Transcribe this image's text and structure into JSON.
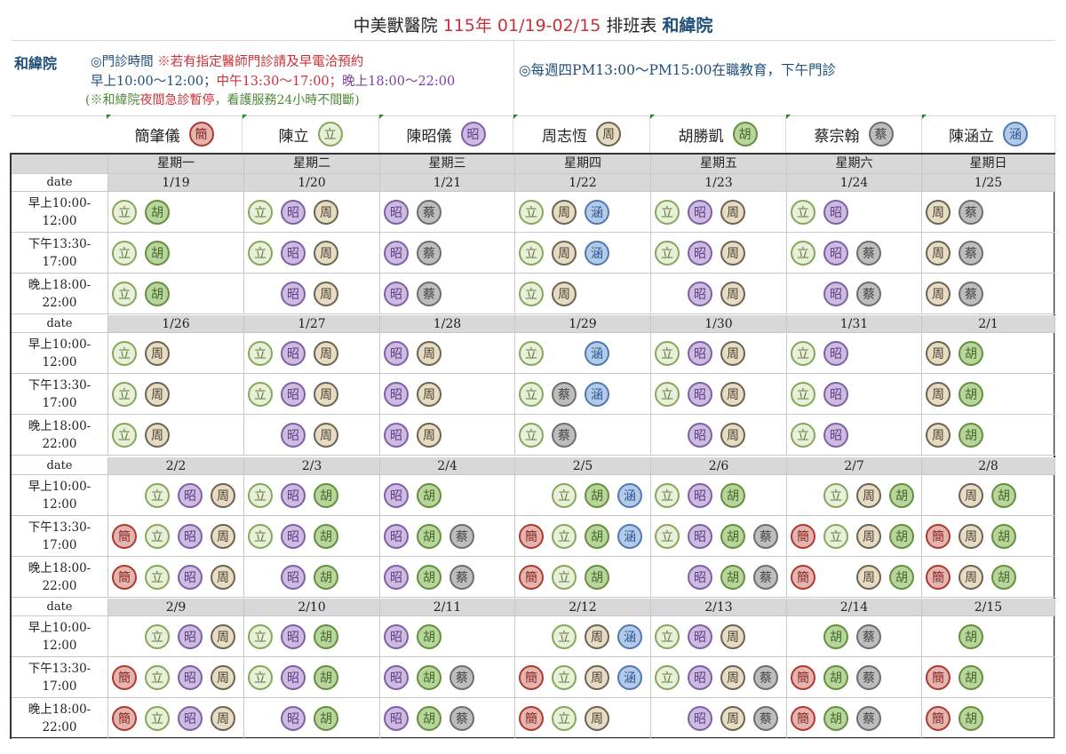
{
  "title": {
    "part1": "中美獸醫院",
    "part2": "115年 01/19-02/15",
    "part3": "排班表",
    "part4": "和緯院"
  },
  "info": {
    "branch": "和緯院",
    "line1_a": "◎門診時間",
    "line1_b": "※若有指定醫師門診請及早電洽預約",
    "line2_a": "早上10:00～12:00；",
    "line2_b": "中午13:30～17:00；",
    "line2_c": "晚上18:00～22:00",
    "line3_a": "(※和緯院",
    "line3_b": "夜間急診暫停",
    "line3_c": "，看護服務24小時不間斷)",
    "right": "◎每週四PM13:00～PM15:00在職教育，下午門診"
  },
  "colors": {
    "簡": {
      "fill": "#e3b4b0",
      "border": "#b0392f",
      "text": "#8b2a22"
    },
    "立": {
      "fill": "#e9efd9",
      "border": "#84a85a",
      "text": "#5a7a3a"
    },
    "昭": {
      "fill": "#cdbbe0",
      "border": "#7f5fa8",
      "text": "#5e3f88"
    },
    "周": {
      "fill": "#e6dcc3",
      "border": "#6e6350",
      "text": "#4e4436"
    },
    "胡": {
      "fill": "#b9d49d",
      "border": "#62913c",
      "text": "#3e6a22"
    },
    "蔡": {
      "fill": "#bdbdbd",
      "border": "#6e6e6e",
      "text": "#444444"
    },
    "涵": {
      "fill": "#b4cbe8",
      "border": "#4f78b4",
      "text": "#2f5898"
    }
  },
  "doctors": [
    {
      "name": "簡肇儀",
      "icon": "簡"
    },
    {
      "name": "陳立",
      "icon": "立"
    },
    {
      "name": "陳昭儀",
      "icon": "昭"
    },
    {
      "name": "周志恆",
      "icon": "周"
    },
    {
      "name": "胡勝凱",
      "icon": "胡"
    },
    {
      "name": "蔡宗翰",
      "icon": "蔡"
    },
    {
      "name": "陳涵立",
      "icon": "涵"
    }
  ],
  "weekdays": [
    "星期一",
    "星期二",
    "星期三",
    "星期四",
    "星期五",
    "星期六",
    "星期日"
  ],
  "date_label": "date",
  "shift_labels": [
    [
      "早上10:00-",
      "12:00"
    ],
    [
      "下午13:30-",
      "17:00"
    ],
    [
      "晚上18:00-",
      "22:00"
    ]
  ],
  "weeks": [
    {
      "dates": [
        "1/19",
        "1/20",
        "1/21",
        "1/22",
        "1/23",
        "1/24",
        "1/25"
      ],
      "shifts": [
        [
          [
            "立",
            "胡"
          ],
          [
            "立",
            "昭",
            "周"
          ],
          [
            "昭",
            "蔡"
          ],
          [
            "立",
            "周",
            "涵"
          ],
          [
            "立",
            "昭",
            "周"
          ],
          [
            "立",
            "昭"
          ],
          [
            "周",
            "蔡"
          ]
        ],
        [
          [
            "立",
            "胡"
          ],
          [
            "立",
            "昭",
            "周"
          ],
          [
            "昭",
            "蔡"
          ],
          [
            "立",
            "周",
            "涵"
          ],
          [
            "立",
            "昭",
            "周"
          ],
          [
            "立",
            "昭",
            "蔡"
          ],
          [
            "周",
            "蔡"
          ]
        ],
        [
          [
            "立",
            "胡"
          ],
          [
            "",
            "昭",
            "周"
          ],
          [
            "昭",
            "蔡"
          ],
          [
            "立",
            "周"
          ],
          [
            "",
            "昭",
            "周"
          ],
          [
            "",
            "昭",
            "蔡"
          ],
          [
            "周",
            "蔡"
          ]
        ]
      ]
    },
    {
      "dates": [
        "1/26",
        "1/27",
        "1/28",
        "1/29",
        "1/30",
        "1/31",
        "2/1"
      ],
      "shifts": [
        [
          [
            "立",
            "周"
          ],
          [
            "立",
            "昭",
            "周"
          ],
          [
            "昭",
            "周"
          ],
          [
            "立",
            "",
            "涵"
          ],
          [
            "立",
            "昭",
            "周"
          ],
          [
            "立",
            "昭"
          ],
          [
            "周",
            "胡"
          ]
        ],
        [
          [
            "立",
            "周"
          ],
          [
            "立",
            "昭",
            "周"
          ],
          [
            "昭",
            "周"
          ],
          [
            "立",
            "蔡",
            "涵"
          ],
          [
            "立",
            "昭",
            "周"
          ],
          [
            "立",
            "昭"
          ],
          [
            "周",
            "胡"
          ]
        ],
        [
          [
            "立",
            "周"
          ],
          [
            "",
            "昭",
            "周"
          ],
          [
            "昭",
            "周"
          ],
          [
            "立",
            "蔡"
          ],
          [
            "",
            "昭",
            "周"
          ],
          [
            "立",
            "昭"
          ],
          [
            "周",
            "胡"
          ]
        ]
      ]
    },
    {
      "dates": [
        "2/2",
        "2/3",
        "2/4",
        "2/5",
        "2/6",
        "2/7",
        "2/8"
      ],
      "shifts": [
        [
          [
            "",
            "立",
            "昭",
            "周"
          ],
          [
            "立",
            "昭",
            "胡"
          ],
          [
            "昭",
            "胡"
          ],
          [
            "",
            "立",
            "胡",
            "涵"
          ],
          [
            "立",
            "昭",
            "胡"
          ],
          [
            "",
            "立",
            "周",
            "胡"
          ],
          [
            "",
            "周",
            "胡"
          ]
        ],
        [
          [
            "簡",
            "立",
            "昭",
            "周"
          ],
          [
            "立",
            "昭",
            "胡"
          ],
          [
            "昭",
            "胡",
            "蔡"
          ],
          [
            "簡",
            "立",
            "胡",
            "涵"
          ],
          [
            "立",
            "昭",
            "胡",
            "蔡"
          ],
          [
            "簡",
            "立",
            "周",
            "胡"
          ],
          [
            "簡",
            "周",
            "胡"
          ]
        ],
        [
          [
            "簡",
            "立",
            "昭",
            "周"
          ],
          [
            "",
            "昭",
            "胡"
          ],
          [
            "昭",
            "胡",
            "蔡"
          ],
          [
            "簡",
            "立",
            "胡"
          ],
          [
            "",
            "昭",
            "胡",
            "蔡"
          ],
          [
            "簡",
            "",
            "周",
            "胡"
          ],
          [
            "簡",
            "周",
            "胡"
          ]
        ]
      ]
    },
    {
      "dates": [
        "2/9",
        "2/10",
        "2/11",
        "2/12",
        "2/13",
        "2/14",
        "2/15"
      ],
      "shifts": [
        [
          [
            "",
            "立",
            "昭",
            "周"
          ],
          [
            "立",
            "昭",
            "胡"
          ],
          [
            "昭",
            "胡"
          ],
          [
            "",
            "立",
            "周",
            "涵"
          ],
          [
            "立",
            "昭",
            "周"
          ],
          [
            "",
            "胡",
            "蔡"
          ],
          [
            "",
            "胡"
          ]
        ],
        [
          [
            "簡",
            "立",
            "昭",
            "周"
          ],
          [
            "立",
            "昭",
            "胡"
          ],
          [
            "昭",
            "胡",
            "蔡"
          ],
          [
            "簡",
            "立",
            "周",
            "涵"
          ],
          [
            "立",
            "昭",
            "周",
            "蔡"
          ],
          [
            "簡",
            "胡",
            "蔡"
          ],
          [
            "簡",
            "胡"
          ]
        ],
        [
          [
            "簡",
            "立",
            "昭",
            "周"
          ],
          [
            "",
            "昭",
            "胡"
          ],
          [
            "昭",
            "胡",
            "蔡"
          ],
          [
            "簡",
            "立",
            "周"
          ],
          [
            "",
            "昭",
            "周",
            "蔡"
          ],
          [
            "簡",
            "胡",
            "蔡"
          ],
          [
            "簡",
            "胡"
          ]
        ]
      ]
    }
  ]
}
